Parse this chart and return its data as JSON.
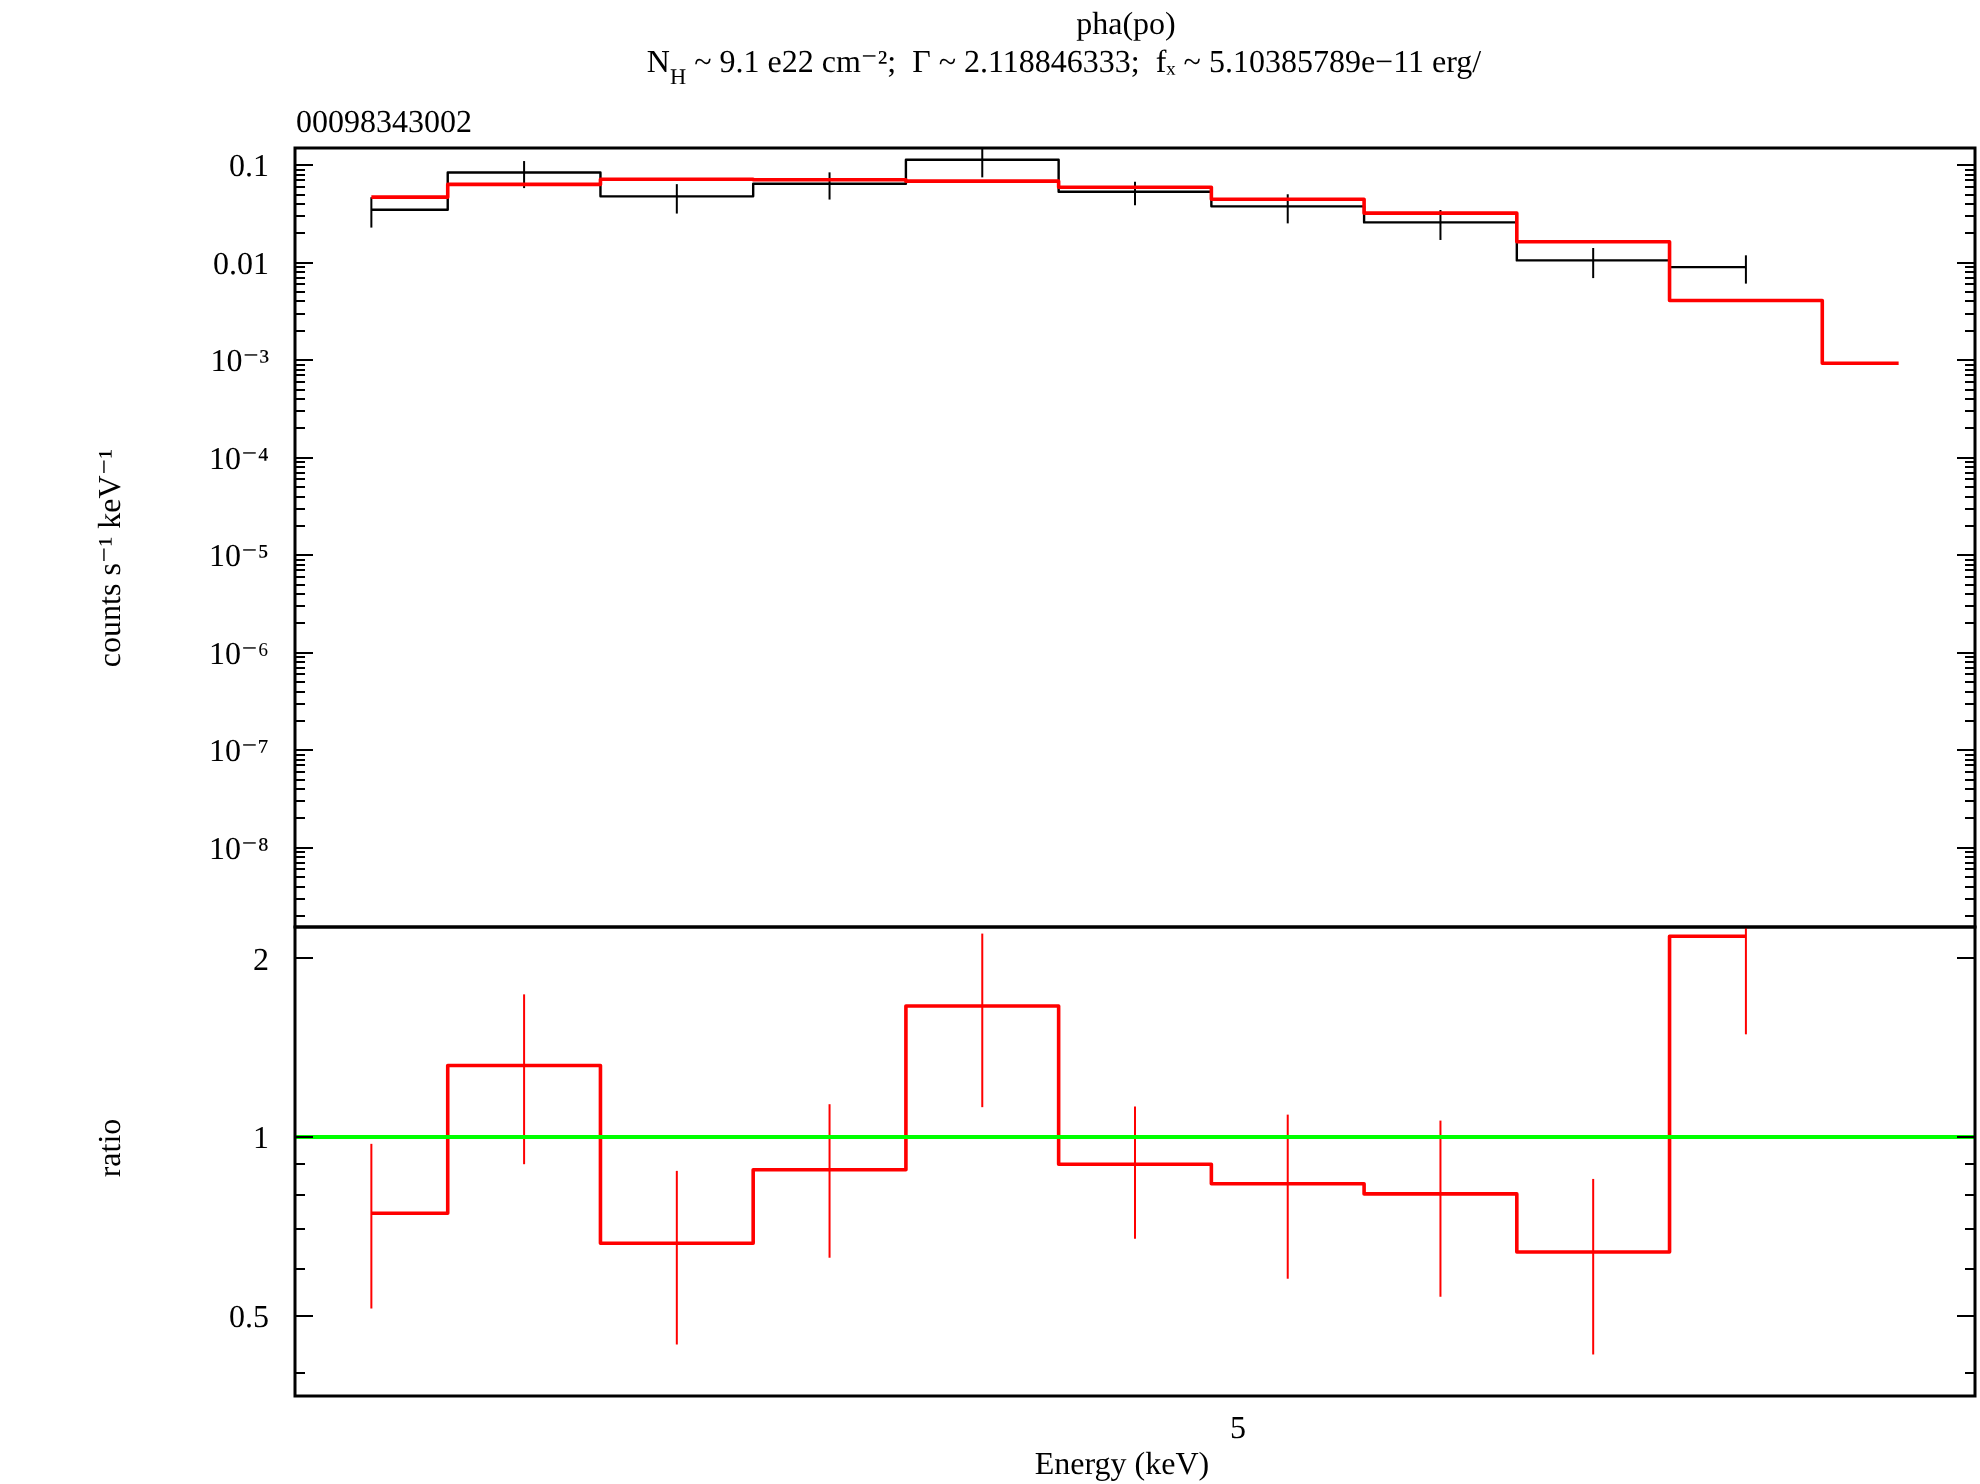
{
  "chart_data": [
    {
      "type": "step",
      "title": "pha(po)",
      "subtitle": "N$_{H}$ ~ 9.1 e22 cm⁻²;  Γ ~ 2.118846333;  fₓ ~ 5.10385789e−11 erg/",
      "annotations": [
        "00098343002"
      ],
      "ylabel": "counts s⁻¹ keV⁻¹",
      "log": "y",
      "tick_labels": "y",
      "categories": [
        null,
        null,
        null,
        null,
        null,
        null,
        null,
        null,
        null,
        null,
        null
      ],
      "ylim": [
        1.54e-09,
        0.15
      ],
      "yticks": [
        {
          "value": 2e-09,
          "label": null
        },
        {
          "value": 3e-09,
          "label": null
        },
        {
          "value": 4e-09,
          "label": null
        },
        {
          "value": 5e-09,
          "label": null
        },
        {
          "value": 6e-09,
          "label": null
        },
        {
          "value": 7e-09,
          "label": null
        },
        {
          "value": 8e-09,
          "label": null
        },
        {
          "value": 9e-09,
          "label": null
        },
        {
          "value": 1e-08,
          "label": "10⁻⁸"
        },
        {
          "value": 2e-08,
          "label": null
        },
        {
          "value": 3e-08,
          "label": null
        },
        {
          "value": 4e-08,
          "label": null
        },
        {
          "value": 5e-08,
          "label": null
        },
        {
          "value": 6e-08,
          "label": null
        },
        {
          "value": 7e-08,
          "label": null
        },
        {
          "value": 8e-08,
          "label": null
        },
        {
          "value": 9e-08,
          "label": null
        },
        {
          "value": 1e-07,
          "label": "10⁻⁷"
        },
        {
          "value": 2e-07,
          "label": null
        },
        {
          "value": 3e-07,
          "label": null
        },
        {
          "value": 4e-07,
          "label": null
        },
        {
          "value": 5e-07,
          "label": null
        },
        {
          "value": 6e-07,
          "label": null
        },
        {
          "value": 7e-07,
          "label": null
        },
        {
          "value": 8e-07,
          "label": null
        },
        {
          "value": 9e-07,
          "label": null
        },
        {
          "value": 1e-06,
          "label": "10⁻⁶"
        },
        {
          "value": 2e-06,
          "label": null
        },
        {
          "value": 3e-06,
          "label": null
        },
        {
          "value": 4e-06,
          "label": null
        },
        {
          "value": 5e-06,
          "label": null
        },
        {
          "value": 6e-06,
          "label": null
        },
        {
          "value": 7e-06,
          "label": null
        },
        {
          "value": 8e-06,
          "label": null
        },
        {
          "value": 9e-06,
          "label": null
        },
        {
          "value": 1e-05,
          "label": "10⁻⁵"
        },
        {
          "value": 2e-05,
          "label": null
        },
        {
          "value": 3e-05,
          "label": null
        },
        {
          "value": 4e-05,
          "label": null
        },
        {
          "value": 5e-05,
          "label": null
        },
        {
          "value": 6e-05,
          "label": null
        },
        {
          "value": 7e-05,
          "label": null
        },
        {
          "value": 8e-05,
          "label": null
        },
        {
          "value": 9e-05,
          "label": null
        },
        {
          "value": 0.0001,
          "label": "10⁻⁴"
        },
        {
          "value": 0.0002,
          "label": null
        },
        {
          "value": 0.0003,
          "label": null
        },
        {
          "value": 0.0004,
          "label": null
        },
        {
          "value": 0.0005,
          "label": null
        },
        {
          "value": 0.0006,
          "label": null
        },
        {
          "value": 0.0007,
          "label": null
        },
        {
          "value": 0.0008,
          "label": null
        },
        {
          "value": 0.0009,
          "label": null
        },
        {
          "value": 0.001,
          "label": "10⁻³"
        },
        {
          "value": 0.002,
          "label": null
        },
        {
          "value": 0.003,
          "label": null
        },
        {
          "value": 0.004,
          "label": null
        },
        {
          "value": 0.005,
          "label": null
        },
        {
          "value": 0.006,
          "label": null
        },
        {
          "value": 0.007,
          "label": null
        },
        {
          "value": 0.008,
          "label": null
        },
        {
          "value": 0.009,
          "label": null
        },
        0.01,
        {
          "value": 0.02,
          "label": null
        },
        {
          "value": 0.03,
          "label": null
        },
        {
          "value": 0.04,
          "label": null
        },
        {
          "value": 0.05,
          "label": null
        },
        {
          "value": 0.06,
          "label": null
        },
        {
          "value": 0.07,
          "label": null
        },
        {
          "value": 0.08,
          "label": null
        },
        {
          "value": 0.09,
          "label": null
        },
        0.1
      ],
      "series": [
        {
          "color": "#000000",
          "values": [
            0.0349,
            0.0842,
            0.0479,
            0.0644,
            0.1135,
            0.0533,
            0.0378,
            0.0259,
            0.01055,
            0.009,
            null
          ],
          "errors": [
            0.012,
            0.026,
            0.016,
            0.02,
            [
              0.075,
              0.15
            ],
            0.0145,
            0.0125,
            0.0088,
            0.0036,
            0.0029,
            null
          ]
        },
        {
          "color": "#ff0000",
          "values": [
            0.047,
            0.0635,
            0.0718,
            0.0708,
            0.0686,
            0.0594,
            0.0448,
            0.0322,
            0.0164,
            0.0041,
            0.00093
          ]
        }
      ]
    },
    {
      "type": "step",
      "xlabel": "Energy (keV)",
      "ylabel": "ratio",
      "log": "y",
      "annotations": [
        "5"
      ],
      "categories": [
        null,
        null,
        null,
        null,
        null,
        null,
        null,
        null,
        null,
        null,
        null
      ],
      "ylim": [
        0.366,
        2.26
      ],
      "yticks": [
        {
          "value": 0.4,
          "label": null
        },
        0.5,
        {
          "value": 0.6,
          "label": null
        },
        {
          "value": 0.7,
          "label": null
        },
        {
          "value": 0.8,
          "label": null
        },
        {
          "value": 0.9,
          "label": null
        },
        1,
        2
      ],
      "ref_lines": [
        {
          "axis": "y",
          "value": 1,
          "color": "#00ff00"
        }
      ],
      "series": [
        {
          "color": "#ff0000",
          "values": [
            0.744,
            1.32,
            0.662,
            0.881,
            1.663,
            0.9,
            0.834,
            0.802,
            0.64,
            2.18,
            null
          ],
          "errors": [
            0.23,
            0.42,
            0.215,
            0.255,
            0.54,
            0.226,
            0.257,
            0.264,
            0.21,
            [
              1.49,
              2.26
            ],
            null
          ]
        }
      ]
    }
  ]
}
